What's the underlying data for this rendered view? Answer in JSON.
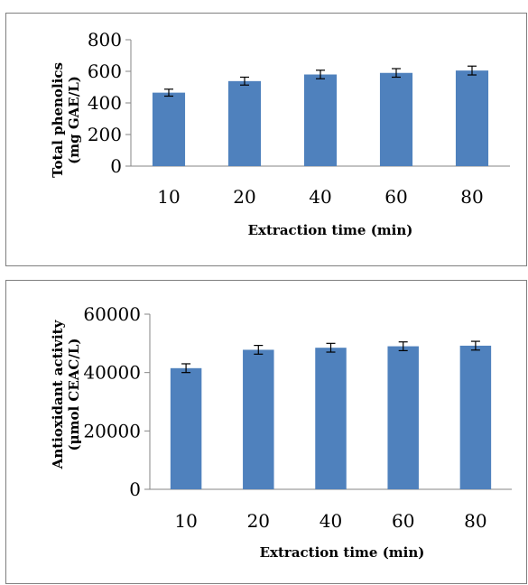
{
  "chart_data": [
    {
      "type": "bar",
      "categories": [
        "10",
        "20",
        "40",
        "60",
        "80"
      ],
      "values": [
        465,
        538,
        580,
        590,
        605
      ],
      "errors": [
        22,
        25,
        27,
        27,
        28
      ],
      "ylabel_line1": "Total phenolics",
      "ylabel_line2": "(mg GAE/L)",
      "xlabel": "Extraction time (min)",
      "ylim": [
        0,
        800
      ],
      "yticks": [
        "0",
        "200",
        "400",
        "600",
        "800"
      ],
      "grid": false,
      "bar_color": "#4f81bd"
    },
    {
      "type": "bar",
      "categories": [
        "10",
        "20",
        "40",
        "60",
        "80"
      ],
      "values": [
        41500,
        47800,
        48500,
        49000,
        49200
      ],
      "errors": [
        1500,
        1500,
        1500,
        1500,
        1500
      ],
      "ylabel_line1": "Antioxidant activity",
      "ylabel_line2": "(μmol CEAC/L)",
      "xlabel": "Extraction time (min)",
      "ylim": [
        0,
        60000
      ],
      "yticks": [
        "0",
        "20000",
        "40000",
        "60000"
      ],
      "grid": false,
      "bar_color": "#4f81bd"
    }
  ]
}
